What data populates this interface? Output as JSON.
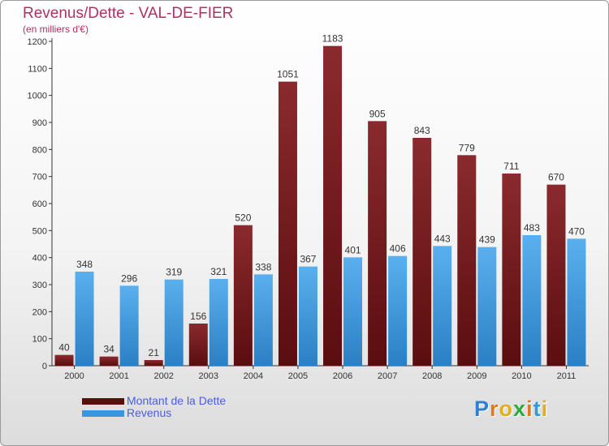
{
  "header": {
    "title": "Revenus/Dette - VAL-DE-FIER",
    "subtitle": "(en milliers d'€)"
  },
  "chart_data": {
    "type": "bar",
    "categories": [
      "2000",
      "2001",
      "2002",
      "2003",
      "2004",
      "2005",
      "2006",
      "2007",
      "2008",
      "2009",
      "2010",
      "2011"
    ],
    "series": [
      {
        "name": "Montant de la Dette",
        "color": "#7a1e22",
        "values": [
          40,
          34,
          21,
          156,
          520,
          1051,
          1183,
          905,
          843,
          779,
          711,
          670
        ]
      },
      {
        "name": "Revenus",
        "color": "#3c96dc",
        "values": [
          348,
          296,
          319,
          321,
          338,
          367,
          401,
          406,
          443,
          439,
          483,
          470
        ]
      }
    ],
    "ylim": [
      0,
      1200
    ],
    "yticks": [
      0,
      100,
      200,
      300,
      400,
      500,
      600,
      700,
      800,
      900,
      1000,
      1100,
      1200
    ],
    "grid": false,
    "legend_position": "bottom-left"
  },
  "legend": {
    "items": [
      {
        "label": "Montant de la Dette",
        "color": "#5a0e10"
      },
      {
        "label": "Revenus",
        "color": "#3c96dc"
      }
    ]
  },
  "brand": {
    "letters": [
      "P",
      "r",
      "o",
      "x",
      "i",
      "t",
      "i"
    ],
    "colors": [
      "#2e7fd6",
      "#e07a1c",
      "#e0b01c",
      "#2eaa3c",
      "#e07a1c",
      "#2e9ad6",
      "#e0b01c"
    ]
  }
}
